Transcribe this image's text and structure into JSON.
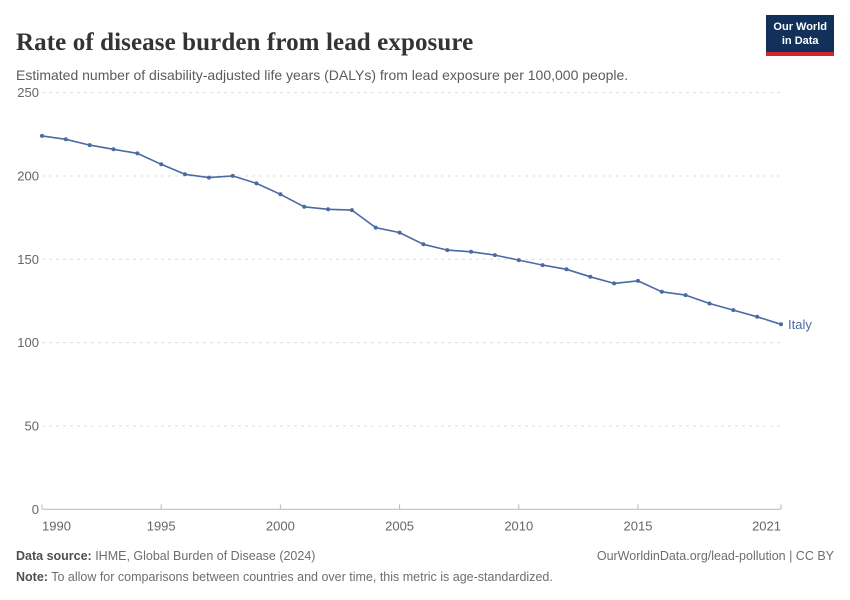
{
  "header": {
    "title": "Rate of disease burden from lead exposure",
    "subtitle": "Estimated number of disability-adjusted life years (DALYs) from lead exposure per 100,000 people.",
    "logo": {
      "line1": "Our World",
      "line2": "in Data",
      "bg_color": "#12315a",
      "accent_color": "#cc2a29"
    }
  },
  "chart_data": {
    "type": "line",
    "title": "Rate of disease burden from lead exposure",
    "subtitle": "Estimated number of disability-adjusted life years (DALYs) from lead exposure per 100,000 people.",
    "xlabel": "",
    "ylabel": "",
    "xlim": [
      1990,
      2021
    ],
    "ylim": [
      0,
      250
    ],
    "xticks": [
      1990,
      1995,
      2000,
      2005,
      2010,
      2015,
      2021
    ],
    "yticks": [
      0,
      50,
      100,
      150,
      200,
      250
    ],
    "grid": "horizontal-dashed",
    "legend_position": "end-of-line-label",
    "x": [
      1990,
      1991,
      1992,
      1993,
      1994,
      1995,
      1996,
      1997,
      1998,
      1999,
      2000,
      2001,
      2002,
      2003,
      2004,
      2005,
      2006,
      2007,
      2008,
      2009,
      2010,
      2011,
      2012,
      2013,
      2014,
      2015,
      2016,
      2017,
      2018,
      2019,
      2020,
      2021
    ],
    "series": [
      {
        "name": "Italy",
        "color": "#4a6aa2",
        "values": [
          224,
          222,
          218.5,
          216,
          213.5,
          207,
          201,
          199,
          200,
          195.5,
          189,
          181.5,
          180,
          179.5,
          169,
          166,
          159,
          155.5,
          154.5,
          152.5,
          149.5,
          146.5,
          144,
          139.5,
          135.5,
          137,
          130.5,
          128.5,
          123.5,
          119.5,
          115.5,
          111
        ]
      }
    ],
    "colors": {
      "grid": "#dddddd",
      "axis": "#b9b9b9",
      "tick_label": "#666666"
    }
  },
  "footer": {
    "source_label": "Data source:",
    "source_text": " IHME, Global Burden of Disease (2024)",
    "link": "OurWorldinData.org/lead-pollution | CC BY",
    "note_label": "Note:",
    "note_text": " To allow for comparisons between countries and over time, this metric is age-standardized."
  }
}
